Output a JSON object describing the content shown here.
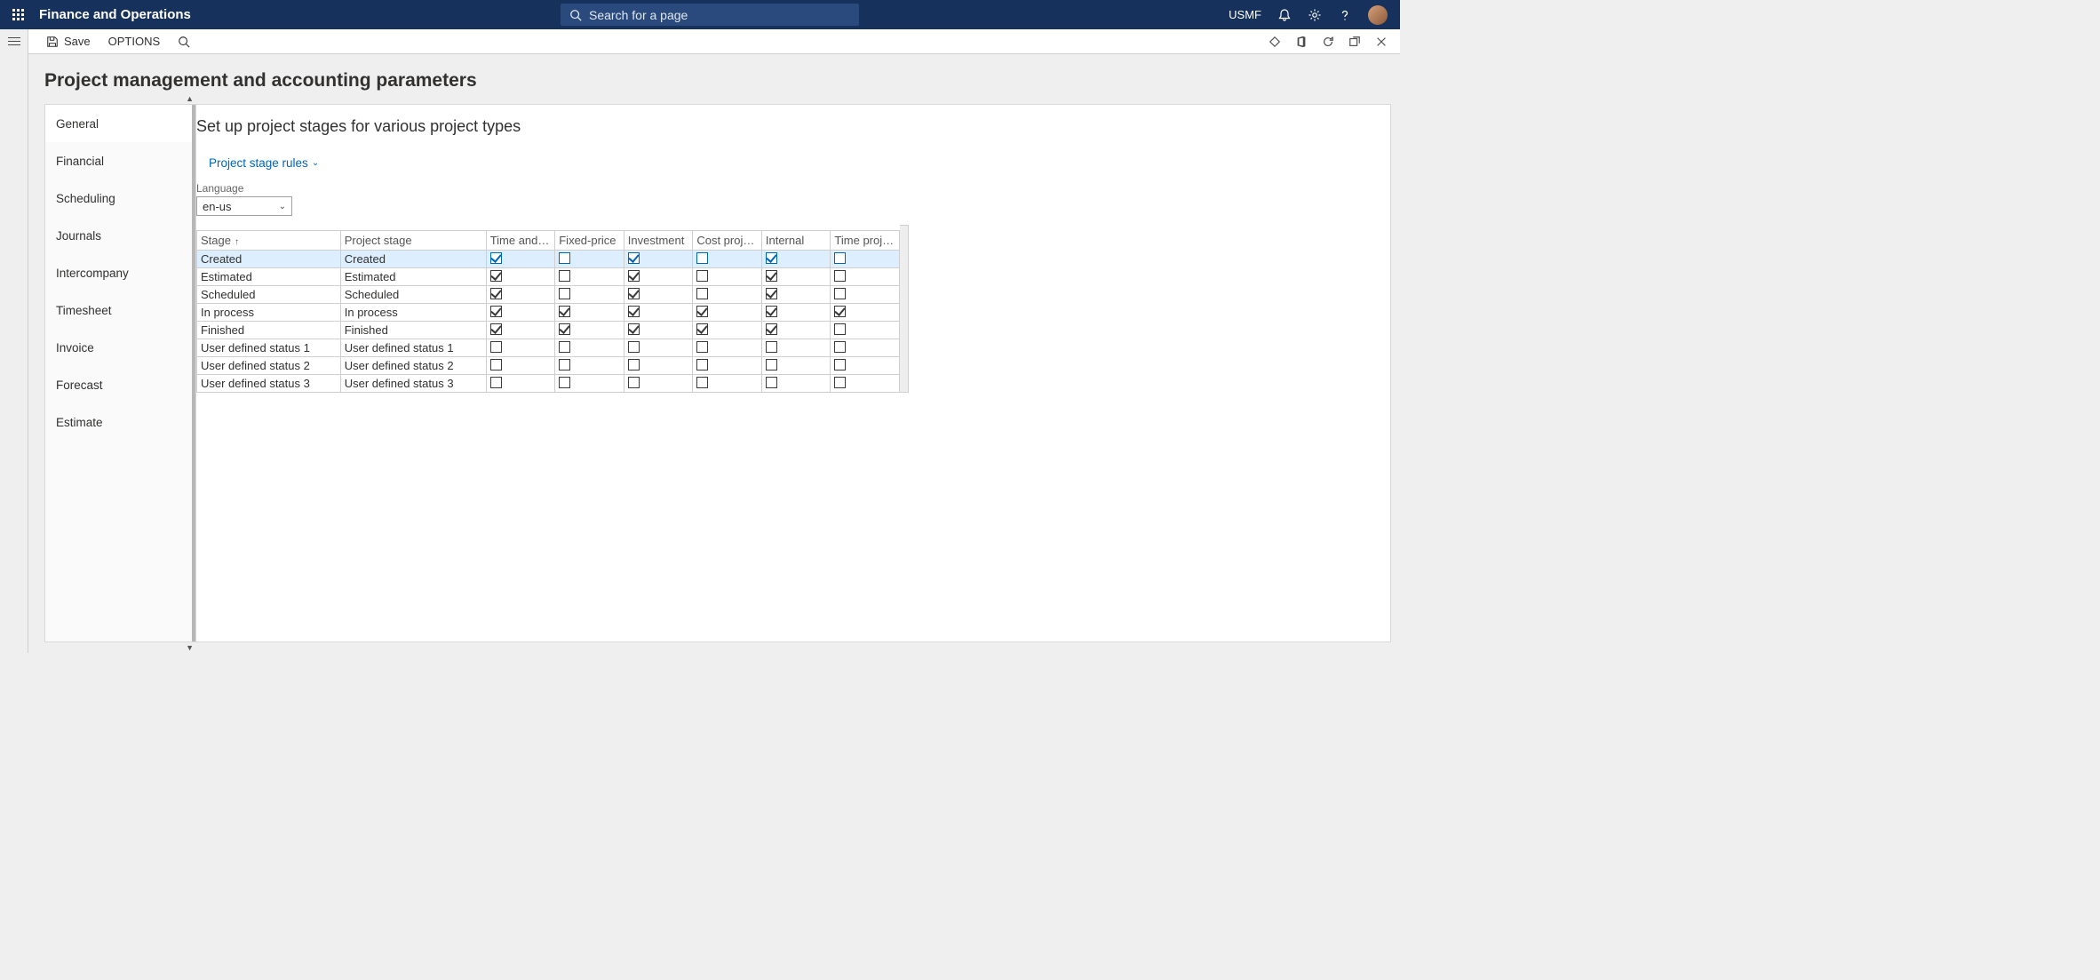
{
  "navbar": {
    "brand": "Finance and Operations",
    "search_placeholder": "Search for a page",
    "entity": "USMF"
  },
  "actionbar": {
    "save_label": "Save",
    "options_label": "OPTIONS"
  },
  "page": {
    "title": "Project management and accounting parameters"
  },
  "sidenav": {
    "items": [
      {
        "label": "General",
        "active": true
      },
      {
        "label": "Financial"
      },
      {
        "label": "Scheduling"
      },
      {
        "label": "Journals"
      },
      {
        "label": "Intercompany"
      },
      {
        "label": "Timesheet"
      },
      {
        "label": "Invoice"
      },
      {
        "label": "Forecast"
      },
      {
        "label": "Estimate"
      }
    ]
  },
  "main": {
    "section_title": "Set up project stages for various project types",
    "rules_link": "Project stage rules",
    "language_label": "Language",
    "language_value": "en-us",
    "grid": {
      "columns": [
        "Stage",
        "Project stage",
        "Time and materi...",
        "Fixed-price",
        "Investment",
        "Cost project",
        "Internal",
        "Time project"
      ],
      "sort_col": 0,
      "rows": [
        {
          "stage": "Created",
          "proj": "Created",
          "c": [
            true,
            false,
            true,
            false,
            true,
            false
          ],
          "selected": true
        },
        {
          "stage": "Estimated",
          "proj": "Estimated",
          "c": [
            true,
            false,
            true,
            false,
            true,
            false
          ]
        },
        {
          "stage": "Scheduled",
          "proj": "Scheduled",
          "c": [
            true,
            false,
            true,
            false,
            true,
            false
          ]
        },
        {
          "stage": "In process",
          "proj": "In process",
          "c": [
            true,
            true,
            true,
            true,
            true,
            true
          ]
        },
        {
          "stage": "Finished",
          "proj": "Finished",
          "c": [
            true,
            true,
            true,
            true,
            true,
            false
          ]
        },
        {
          "stage": "User defined status 1",
          "proj": "User defined status 1",
          "c": [
            false,
            false,
            false,
            false,
            false,
            false
          ]
        },
        {
          "stage": "User defined status 2",
          "proj": "User defined status 2",
          "c": [
            false,
            false,
            false,
            false,
            false,
            false
          ]
        },
        {
          "stage": "User defined status 3",
          "proj": "User defined status 3",
          "c": [
            false,
            false,
            false,
            false,
            false,
            false
          ]
        }
      ]
    }
  },
  "colors": {
    "navy": "#16325c",
    "navy_search": "#2a4a7d",
    "link": "#0066b8",
    "row_selected": "#def"
  }
}
